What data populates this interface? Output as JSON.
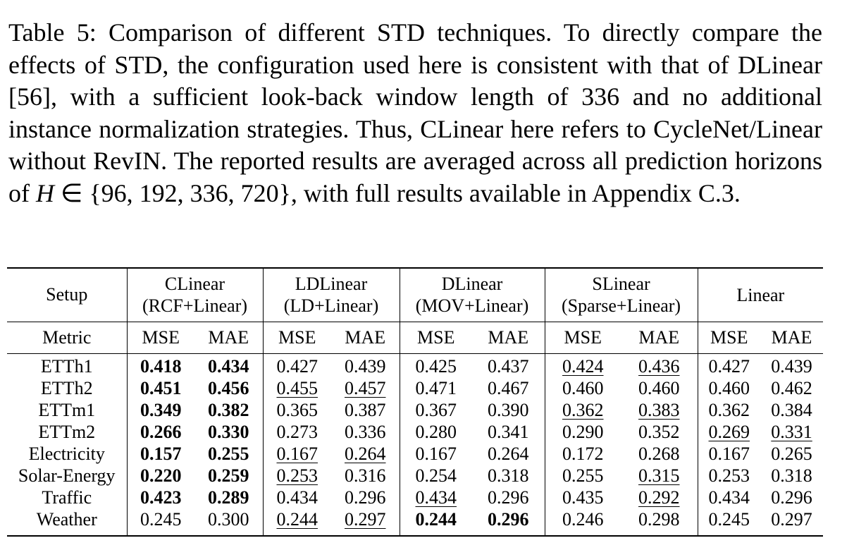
{
  "caption": [
    "Table 5: Comparison of different STD techniques. To directly compare the effects of STD, the configuration used here is consistent with that of DLinear [56], with a sufficient look-back window length of 336 and no additional instance normalization strategies. Thus, CLinear here refers to CycleNet/Linear without RevIN. The reported results are averaged across all prediction horizons of ",
    "H",
    " ∈ {96, 192, 336, 720}, with full results available in Appendix C.3."
  ],
  "table": {
    "setup": "Setup",
    "metric": "Metric",
    "groups": [
      {
        "name": "CLinear",
        "sub": "(RCF+Linear)"
      },
      {
        "name": "LDLinear",
        "sub": "(LD+Linear)"
      },
      {
        "name": "DLinear",
        "sub": "(MOV+Linear)"
      },
      {
        "name": "SLinear",
        "sub": "(Sparse+Linear)"
      },
      {
        "name": "Linear"
      }
    ],
    "metrics": [
      "MSE",
      "MAE",
      "MSE",
      "MAE",
      "MSE",
      "MAE",
      "MSE",
      "MAE",
      "MSE",
      "MAE"
    ],
    "rows": [
      {
        "name": "ETTh1",
        "values": [
          "0.418",
          "0.434",
          "0.427",
          "0.439",
          "0.425",
          "0.437",
          "0.424",
          "0.436",
          "0.427",
          "0.439"
        ],
        "bold": [
          0,
          1
        ],
        "underline": [
          6,
          7
        ]
      },
      {
        "name": "ETTh2",
        "values": [
          "0.451",
          "0.456",
          "0.455",
          "0.457",
          "0.471",
          "0.467",
          "0.460",
          "0.460",
          "0.460",
          "0.462"
        ],
        "bold": [
          0,
          1
        ],
        "underline": [
          2,
          3
        ]
      },
      {
        "name": "ETTm1",
        "values": [
          "0.349",
          "0.382",
          "0.365",
          "0.387",
          "0.367",
          "0.390",
          "0.362",
          "0.383",
          "0.362",
          "0.384"
        ],
        "bold": [
          0,
          1
        ],
        "underline": [
          6,
          7
        ]
      },
      {
        "name": "ETTm2",
        "values": [
          "0.266",
          "0.330",
          "0.273",
          "0.336",
          "0.280",
          "0.341",
          "0.290",
          "0.352",
          "0.269",
          "0.331"
        ],
        "bold": [
          0,
          1
        ],
        "underline": [
          8,
          9
        ]
      },
      {
        "name": "Electricity",
        "values": [
          "0.157",
          "0.255",
          "0.167",
          "0.264",
          "0.167",
          "0.264",
          "0.172",
          "0.268",
          "0.167",
          "0.265"
        ],
        "bold": [
          0,
          1
        ],
        "underline": [
          2,
          3
        ]
      },
      {
        "name": "Solar-Energy",
        "values": [
          "0.220",
          "0.259",
          "0.253",
          "0.316",
          "0.254",
          "0.318",
          "0.255",
          "0.315",
          "0.253",
          "0.318"
        ],
        "bold": [
          0,
          1
        ],
        "underline": [
          2,
          7
        ]
      },
      {
        "name": "Traffic",
        "values": [
          "0.423",
          "0.289",
          "0.434",
          "0.296",
          "0.434",
          "0.296",
          "0.435",
          "0.292",
          "0.434",
          "0.296"
        ],
        "bold": [
          0,
          1
        ],
        "underline": [
          4,
          7
        ]
      },
      {
        "name": "Weather",
        "values": [
          "0.245",
          "0.300",
          "0.244",
          "0.297",
          "0.244",
          "0.296",
          "0.246",
          "0.298",
          "0.245",
          "0.297"
        ],
        "bold": [
          4,
          5
        ],
        "underline": [
          2,
          3
        ]
      }
    ]
  }
}
